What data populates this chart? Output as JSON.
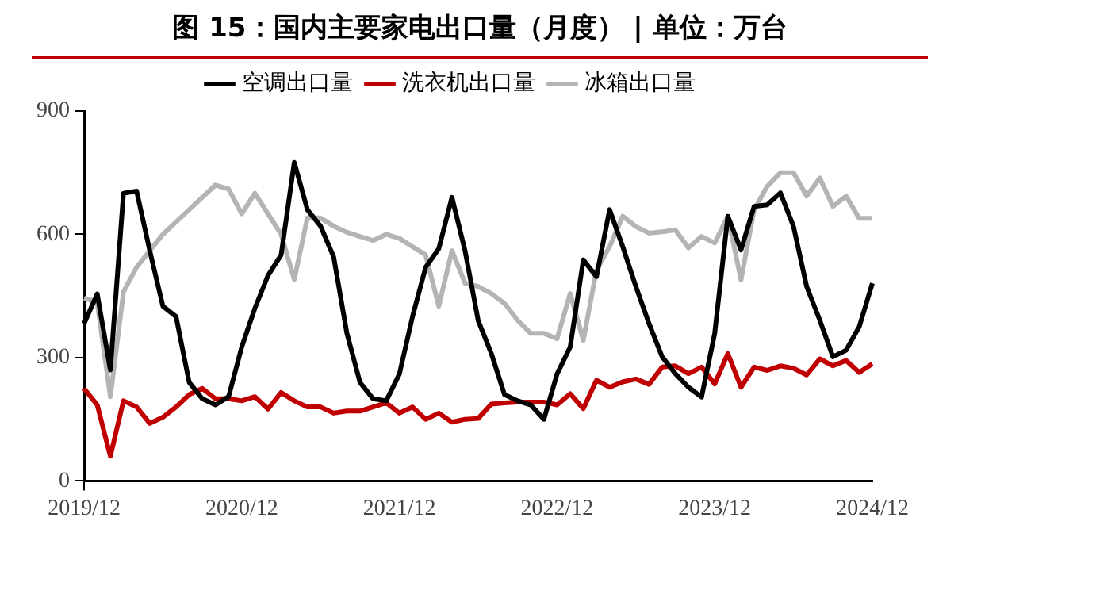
{
  "chart_data": {
    "type": "line",
    "title": "图 15：国内主要家电出口量（月度） | 单位：万台",
    "categories": [
      "2019/12",
      null,
      null,
      null,
      null,
      null,
      null,
      null,
      null,
      null,
      null,
      null,
      "2020/12",
      null,
      null,
      null,
      null,
      null,
      null,
      null,
      null,
      null,
      null,
      null,
      "2021/12",
      null,
      null,
      null,
      null,
      null,
      null,
      null,
      null,
      null,
      null,
      null,
      "2022/12",
      null,
      null,
      null,
      null,
      null,
      null,
      null,
      null,
      null,
      null,
      null,
      "2023/12",
      null,
      null,
      null,
      null,
      null,
      null,
      null,
      null,
      null,
      null,
      null,
      "2024/12"
    ],
    "series": [
      {
        "name": "空调出口量",
        "color": "#000000",
        "values": [
          383,
          455,
          270,
          700,
          705,
          560,
          425,
          400,
          240,
          200,
          185,
          205,
          326,
          420,
          500,
          550,
          775,
          660,
          620,
          545,
          360,
          240,
          200,
          195,
          260,
          400,
          520,
          565,
          690,
          560,
          390,
          310,
          210,
          195,
          185,
          150,
          260,
          326,
          538,
          497,
          660,
          570,
          473,
          383,
          302,
          261,
          228,
          204,
          359,
          644,
          562,
          668,
          672,
          701,
          619,
          473,
          391,
          302,
          318,
          375,
          481
        ]
      },
      {
        "name": "洗衣机出口量",
        "color": "#c00000",
        "values": [
          225,
          185,
          60,
          195,
          180,
          140,
          155,
          180,
          210,
          225,
          200,
          200,
          195,
          205,
          175,
          215,
          195,
          180,
          180,
          165,
          170,
          170,
          180,
          190,
          165,
          180,
          150,
          165,
          143,
          150,
          152,
          187,
          190,
          192,
          192,
          192,
          185,
          212,
          176,
          245,
          228,
          241,
          248,
          235,
          277,
          280,
          261,
          277,
          236,
          310,
          228,
          277,
          269,
          280,
          274,
          258,
          297,
          280,
          293,
          264,
          285
        ]
      },
      {
        "name": "冰箱出口量",
        "color": "#b4b4b4",
        "values": [
          445,
          435,
          205,
          460,
          520,
          560,
          600,
          630,
          660,
          690,
          720,
          710,
          650,
          700,
          650,
          600,
          490,
          640,
          640,
          620,
          605,
          595,
          585,
          600,
          590,
          570,
          550,
          425,
          560,
          481,
          473,
          456,
          432,
          391,
          359,
          359,
          346,
          456,
          342,
          513,
          570,
          644,
          619,
          603,
          606,
          611,
          567,
          595,
          579,
          644,
          489,
          660,
          717,
          750,
          750,
          693,
          737,
          668,
          693,
          639,
          639
        ]
      }
    ],
    "ylim": [
      0,
      900
    ],
    "yticks": [
      0,
      300,
      600,
      900
    ],
    "grid": false,
    "legend": "top",
    "marker": "none",
    "line_style": "solid"
  }
}
